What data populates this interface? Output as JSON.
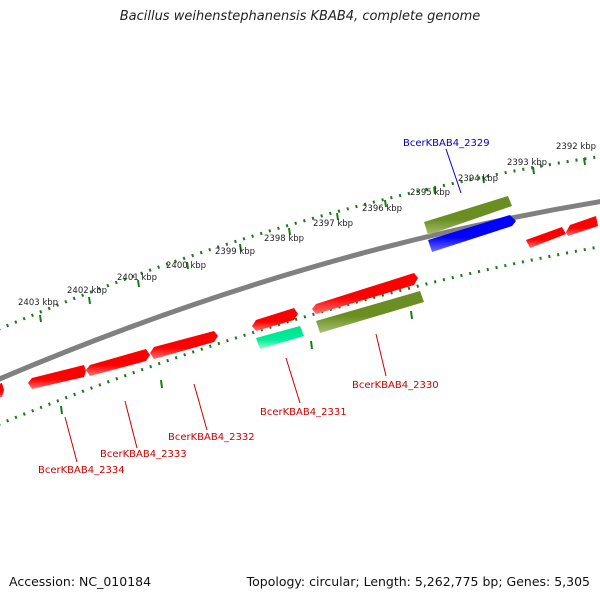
{
  "title": "Bacillus weihenstephanensis KBAB4, complete genome",
  "footer": {
    "accession": "Accession: NC_010184",
    "summary": "Topology: circular; Length: 5,262,775 bp; Genes: 5,305"
  },
  "scale_labels": [
    "2392 kbp",
    "2393 kbp",
    "2394 kbp",
    "2395 kbp",
    "2396 kbp",
    "2397 kbp",
    "2398 kbp",
    "2399 kbp",
    "2400 kbp",
    "2401 kbp",
    "2402 kbp",
    "2403 kbp"
  ],
  "gene_labels": [
    {
      "text": "BcerKBAB4_2329",
      "color": "#0000cc"
    },
    {
      "text": "BcerKBAB4_2330",
      "color": "#cc0000"
    },
    {
      "text": "BcerKBAB4_2331",
      "color": "#cc0000"
    },
    {
      "text": "BcerKBAB4_2332",
      "color": "#cc0000"
    },
    {
      "text": "BcerKBAB4_2333",
      "color": "#cc0000"
    },
    {
      "text": "BcerKBAB4_2334",
      "color": "#cc0000"
    }
  ],
  "colors": {
    "backbone": "#808080",
    "scale": "#1a7a1a",
    "cds": "#ff0000",
    "gene": "#6b8e23",
    "blue_gene": "#0000ff",
    "rna": "#00ee99"
  }
}
